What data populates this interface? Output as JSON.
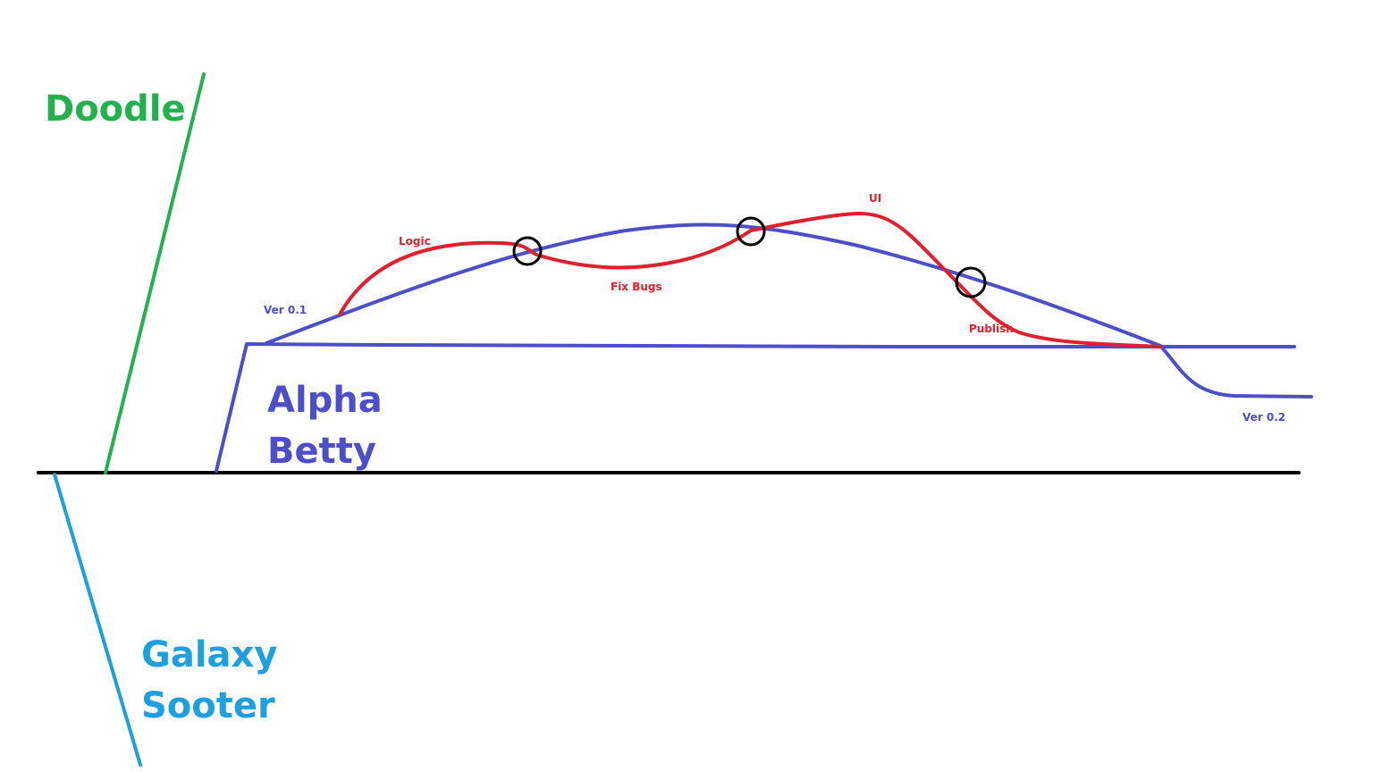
{
  "projects": {
    "doodle": {
      "label": "Doodle",
      "color": "#22b14c"
    },
    "alpha_betty": {
      "line1": "Alpha",
      "line2": "Betty",
      "color": "#4c4fc9"
    },
    "galaxy_sooter": {
      "line1": "Galaxy",
      "line2": "Sooter",
      "color": "#1ea0e0"
    }
  },
  "alpha_betty_tasks": {
    "color": "#e0202c",
    "logic": "Logic",
    "fix_bugs": "Fix Bugs",
    "ui": "UI",
    "publish": "Publish"
  },
  "versions": {
    "color": "#4c4fc9",
    "ver_01": "Ver 0.1",
    "ver_02": "Ver 0.2"
  },
  "colors": {
    "baseline": "#000000",
    "checkpoint": "#000000"
  }
}
